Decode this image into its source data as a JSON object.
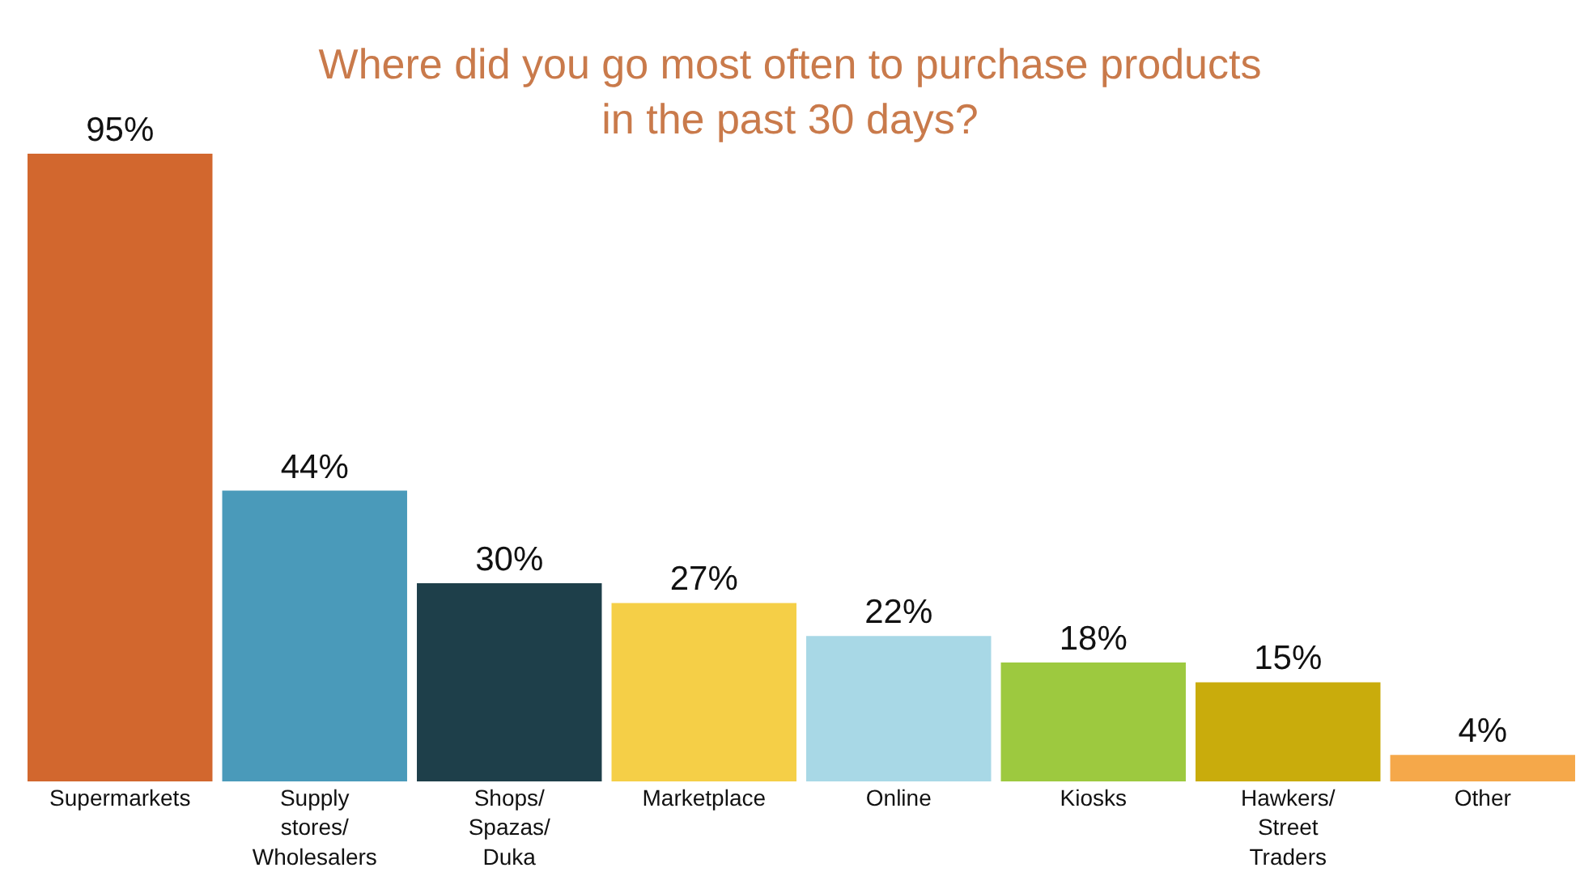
{
  "chart_data": {
    "type": "bar",
    "title": "Where did you go most often to purchase products\nin the past 30 days?",
    "categories": [
      "Supermarkets",
      "Supply\nstores/\nWholesalers",
      "Shops/\nSpazas/\nDuka",
      "Marketplace",
      "Online",
      "Kiosks",
      "Hawkers/\nStreet\nTraders",
      "Other"
    ],
    "values": [
      95,
      44,
      30,
      27,
      22,
      18,
      15,
      4
    ],
    "value_labels": [
      "95%",
      "44%",
      "30%",
      "27%",
      "22%",
      "18%",
      "15%",
      "4%"
    ],
    "colors": [
      "#d2672e",
      "#4a9aba",
      "#1e3f4a",
      "#f5cf47",
      "#a8d8e6",
      "#9dc93f",
      "#c9ac0c",
      "#f5a84a"
    ],
    "legend": false
  }
}
